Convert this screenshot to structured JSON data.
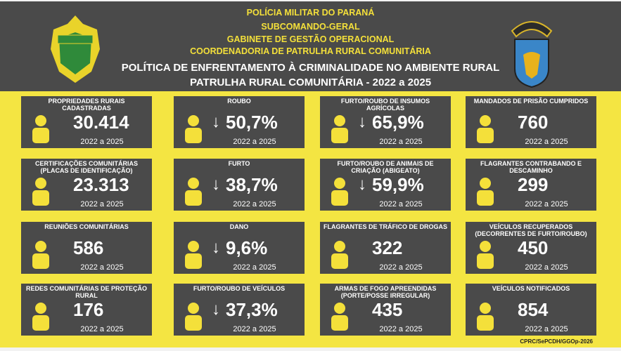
{
  "header": {
    "lines": [
      "POLÍCIA MILITAR DO PARANÁ",
      "SUBCOMANDO-GERAL",
      "GABINETE DE GESTÃO OPERACIONAL",
      "COORDENADORIA DE PATRULHA RURAL COMUNITÁRIA"
    ],
    "title": "POLÍTICA DE ENFRENTAMENTO À CRIMINALIDADE NO AMBIENTE RURAL",
    "subtitle": "PATRULHA RURAL COMUNITÁRIA - 2022 a 2025",
    "left_logo": "PARANÁ POLÍCIA MILITAR",
    "right_logo": "SUBCOMANDO-GERAL"
  },
  "cards": [
    {
      "title": "PROPRIEDADES RURAIS CADASTRADAS",
      "value": "30.414",
      "period": "2022 a 2025",
      "icon": "handshake-officer-icon",
      "arrow": false
    },
    {
      "title": "ROUBO",
      "value": "50,7%",
      "period": "2022 a 2025",
      "icon": "siren-icon",
      "arrow": true
    },
    {
      "title": "FURTO/ROUBO DE INSUMOS AGRÍCOLAS",
      "value": "65,9%",
      "period": "2022 a 2025",
      "icon": "seed-bag-icon",
      "arrow": true
    },
    {
      "title": "MANDADOS DE PRISÃO CUMPRIDOS",
      "value": "760",
      "period": "2022 a 2025",
      "icon": "jail-icon",
      "arrow": false
    },
    {
      "title": "CERTIFICAÇÕES COMUNITÁRIAS (PLACAS DE IDENTIFICAÇÃO)",
      "value": "23.313",
      "period": "2022 a 2025",
      "icon": "sign-plate-icon",
      "arrow": false
    },
    {
      "title": "FURTO",
      "value": "38,7%",
      "period": "2022 a 2025",
      "icon": "thief-icon",
      "arrow": true
    },
    {
      "title": "FURTO/ROUBO DE ANIMAIS DE CRIAÇÃO (ABIGEATO)",
      "value": "59,9%",
      "period": "2022 a 2025",
      "icon": "cow-icon",
      "arrow": true
    },
    {
      "title": "FLAGRANTES CONTRABANDO E DESCAMINHO",
      "value": "299",
      "period": "2022 a 2025",
      "icon": "officer-suspect-icon",
      "arrow": false
    },
    {
      "title": "REUNIÕES COMUNITÁRIAS",
      "value": "586",
      "period": "2022 a 2025",
      "icon": "community-icon",
      "arrow": false
    },
    {
      "title": "DANO",
      "value": "9,6%",
      "period": "2022 a 2025",
      "icon": "damage-icon",
      "arrow": true
    },
    {
      "title": "FLAGRANTES DE TRÁFICO DE DROGAS",
      "value": "322",
      "period": "2022 a 2025",
      "icon": "handcuffs-icon",
      "arrow": false
    },
    {
      "title": "VEÍCULOS RECUPERADOS (DECORRENTES DE FURTO/ROUBO)",
      "value": "450",
      "period": "2022 a 2025",
      "icon": "cars-icon",
      "arrow": false
    },
    {
      "title": "REDES COMUNITÁRIAS DE PROTEÇÃO RURAL",
      "value": "176",
      "period": "2022 a 2025",
      "icon": "network-icon",
      "arrow": false
    },
    {
      "title": "FURTO/ROUBO DE VEÍCULOS",
      "value": "37,3%",
      "period": "2022 a 2025",
      "icon": "tractor-icon",
      "arrow": true
    },
    {
      "title": "ARMAS DE FOGO APREENDIDAS (PORTE/POSSE IRREGULAR)",
      "value": "435",
      "period": "2022 a 2025",
      "icon": "revolver-icon",
      "arrow": false
    },
    {
      "title": "VEÍCULOS NOTIFICADOS",
      "value": "854",
      "period": "2022 a 2025",
      "icon": "traffic-stop-icon",
      "arrow": false
    }
  ],
  "arrow_symbol": "↓",
  "footer": "CPRC/SePCDH/GGOp-2026",
  "colors": {
    "header": "#4a4a4a",
    "band": "#f4e542",
    "accent": "#f4e03a",
    "card": "#4a4a4a"
  }
}
